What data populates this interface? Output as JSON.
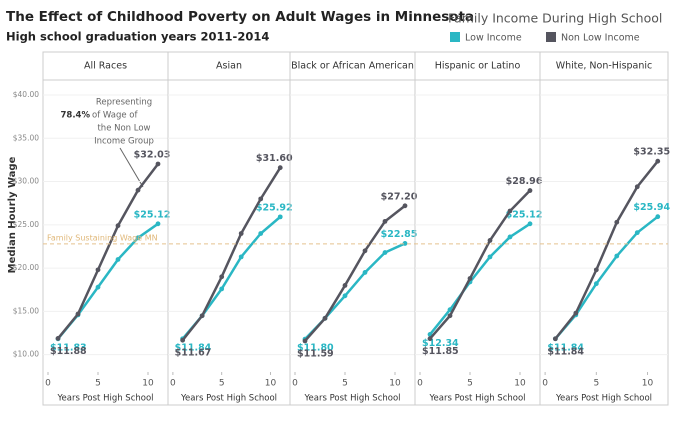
{
  "chart_data": [
    {
      "type": "line",
      "title": "The Effect of Childhood Poverty on Adult Wages in Minnesota",
      "subtitle": "High school graduation years 2011-2014",
      "legend_title": "Family Income During High School",
      "ylabel": "Median Hourly Wage",
      "annotation_lines": [
        "Representing",
        "78.4%",
        "of Wage of",
        "the Non Low",
        "Income Group"
      ],
      "reference_line": {
        "value": 22.8,
        "label": "Family Sustaining Wage MN"
      },
      "panel_title": "All Races",
      "xlabel": "Years Post High School",
      "x": [
        1,
        3,
        5,
        7,
        9,
        11
      ],
      "xlim": [
        -0.5,
        12
      ],
      "xticks": [
        0,
        5,
        10
      ],
      "ylim": [
        8,
        41.5
      ],
      "yticks": [
        {
          "value": 10,
          "label": "$10.00"
        },
        {
          "value": 15,
          "label": "$15.00"
        },
        {
          "value": 20,
          "label": "$20.00"
        },
        {
          "value": 25,
          "label": "$25.00"
        },
        {
          "value": 30,
          "label": "$30.00"
        },
        {
          "value": 35,
          "label": "$35.00"
        },
        {
          "value": 40,
          "label": "$40.00"
        }
      ],
      "series": [
        {
          "name": "Low Income",
          "color": "#2ab7c4",
          "values": [
            11.83,
            14.6,
            17.8,
            21.0,
            23.5,
            25.12
          ],
          "value_labels": [
            "$11.83",
            null,
            null,
            null,
            null,
            "$25.12"
          ]
        },
        {
          "name": "Non Low Income",
          "color": "#55555f",
          "values": [
            11.88,
            14.7,
            19.8,
            24.9,
            29.0,
            32.03
          ],
          "value_labels": [
            "$11.88",
            null,
            null,
            null,
            null,
            "$32.03"
          ]
        }
      ]
    },
    {
      "type": "line",
      "panel_title": "Asian",
      "xlabel": "Years Post High School",
      "x": [
        1,
        3,
        5,
        7,
        9,
        11
      ],
      "xlim": [
        -0.5,
        12
      ],
      "xticks": [
        0,
        5,
        10
      ],
      "ylim": [
        8,
        41.5
      ],
      "yticks": [
        10,
        15,
        20,
        25,
        30,
        35,
        40
      ],
      "series": [
        {
          "name": "Low Income",
          "color": "#2ab7c4",
          "values": [
            11.84,
            14.5,
            17.6,
            21.3,
            24.0,
            25.92
          ],
          "value_labels": [
            "$11.84",
            null,
            null,
            null,
            null,
            "$25.92"
          ]
        },
        {
          "name": "Non Low Income",
          "color": "#55555f",
          "values": [
            11.67,
            14.5,
            19.0,
            24.0,
            28.0,
            31.6
          ],
          "value_labels": [
            "$11.67",
            null,
            null,
            null,
            null,
            "$31.60"
          ]
        }
      ]
    },
    {
      "type": "line",
      "panel_title": "Black or African American",
      "xlabel": "Years Post High School",
      "x": [
        1,
        3,
        5,
        7,
        9,
        11
      ],
      "xlim": [
        -0.5,
        12
      ],
      "xticks": [
        0,
        5,
        10
      ],
      "ylim": [
        8,
        41.5
      ],
      "yticks": [
        10,
        15,
        20,
        25,
        30,
        35,
        40
      ],
      "series": [
        {
          "name": "Low Income",
          "color": "#2ab7c4",
          "values": [
            11.8,
            14.2,
            16.8,
            19.5,
            21.8,
            22.85
          ],
          "value_labels": [
            "$11.80",
            null,
            null,
            null,
            null,
            "$22.85"
          ]
        },
        {
          "name": "Non Low Income",
          "color": "#55555f",
          "values": [
            11.59,
            14.2,
            18.0,
            22.0,
            25.4,
            27.2
          ],
          "value_labels": [
            "$11.59",
            null,
            null,
            null,
            null,
            "$27.20"
          ]
        }
      ]
    },
    {
      "type": "line",
      "panel_title": "Hispanic or Latino",
      "xlabel": "Years Post High School",
      "x": [
        1,
        3,
        5,
        7,
        9,
        11
      ],
      "xlim": [
        -0.5,
        12
      ],
      "xticks": [
        0,
        5,
        10
      ],
      "ylim": [
        8,
        41.5
      ],
      "yticks": [
        10,
        15,
        20,
        25,
        30,
        35,
        40
      ],
      "series": [
        {
          "name": "Low Income",
          "color": "#2ab7c4",
          "values": [
            12.34,
            15.2,
            18.4,
            21.3,
            23.6,
            25.12
          ],
          "value_labels": [
            "$12.34",
            null,
            null,
            null,
            null,
            "$25.12"
          ]
        },
        {
          "name": "Non Low Income",
          "color": "#55555f",
          "values": [
            11.85,
            14.5,
            18.8,
            23.2,
            26.6,
            28.96
          ],
          "value_labels": [
            "$11.85",
            null,
            null,
            null,
            null,
            "$28.96"
          ]
        }
      ]
    },
    {
      "type": "line",
      "panel_title": "White, Non-Hispanic",
      "xlabel": "Years Post High School",
      "x": [
        1,
        3,
        5,
        7,
        9,
        11
      ],
      "xlim": [
        -0.5,
        12
      ],
      "xticks": [
        0,
        5,
        10
      ],
      "ylim": [
        8,
        41.5
      ],
      "yticks": [
        10,
        15,
        20,
        25,
        30,
        35,
        40
      ],
      "series": [
        {
          "name": "Low Income",
          "color": "#2ab7c4",
          "values": [
            11.84,
            14.6,
            18.2,
            21.4,
            24.1,
            25.94
          ],
          "value_labels": [
            "$11.84",
            null,
            null,
            null,
            null,
            "$25.94"
          ]
        },
        {
          "name": "Non Low Income",
          "color": "#55555f",
          "values": [
            11.84,
            14.8,
            19.8,
            25.3,
            29.4,
            32.35
          ],
          "value_labels": [
            "$11.84",
            null,
            null,
            null,
            null,
            "$32.35"
          ]
        }
      ]
    }
  ]
}
